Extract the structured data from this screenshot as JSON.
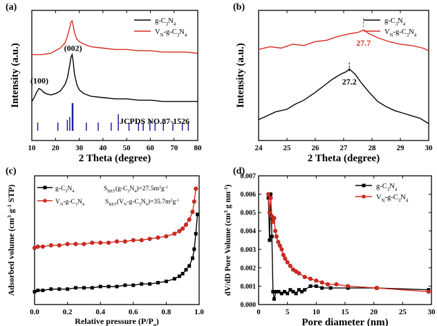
{
  "chart_data": [
    {
      "panel": "(a)",
      "type": "line",
      "xlabel": "2 Theta (degree)",
      "ylabel": "Intensity (a.u.)",
      "xlim": [
        10,
        80
      ],
      "xticks": [
        10,
        20,
        30,
        40,
        50,
        60,
        70,
        80
      ],
      "legend_loc": "top-right",
      "series": [
        {
          "name": "g-C3N4",
          "color": "#000000",
          "x": [
            10,
            11,
            12,
            13,
            14,
            15,
            16,
            18,
            20,
            22,
            24,
            25,
            26,
            26.5,
            27,
            27.5,
            28,
            29,
            30,
            32,
            35,
            40,
            45,
            50,
            55,
            60,
            65,
            70,
            75,
            80
          ],
          "y": [
            0.3,
            0.33,
            0.37,
            0.4,
            0.39,
            0.37,
            0.36,
            0.35,
            0.36,
            0.38,
            0.43,
            0.48,
            0.58,
            0.64,
            0.66,
            0.6,
            0.51,
            0.43,
            0.39,
            0.36,
            0.34,
            0.33,
            0.32,
            0.32,
            0.31,
            0.31,
            0.3,
            0.3,
            0.3,
            0.3
          ]
        },
        {
          "name": "VN-g-C3N4",
          "color": "#d62a1f",
          "x": [
            10,
            14,
            18,
            20,
            22,
            24,
            25,
            26,
            26.5,
            27,
            27.5,
            28,
            29,
            30,
            32,
            35,
            40,
            45,
            50,
            55,
            60,
            65,
            70,
            75,
            80
          ],
          "y": [
            0.66,
            0.66,
            0.67,
            0.69,
            0.71,
            0.75,
            0.8,
            0.87,
            0.91,
            0.92,
            0.88,
            0.83,
            0.78,
            0.76,
            0.74,
            0.72,
            0.71,
            0.7,
            0.7,
            0.69,
            0.69,
            0.68,
            0.68,
            0.68,
            0.67
          ]
        }
      ],
      "reference": {
        "label": "JCPDS NO.87-1526",
        "color": "#1f1f9e",
        "x": [
          12.5,
          21,
          25,
          26,
          27.2,
          33,
          38,
          43.5,
          46.5,
          51,
          55,
          57,
          59.8,
          62,
          65.5,
          69.5,
          73.5,
          76
        ],
        "h": [
          0.3,
          0.3,
          0.4,
          0.5,
          1.0,
          0.3,
          0.3,
          0.3,
          0.6,
          0.3,
          0.3,
          0.3,
          0.4,
          0.3,
          0.3,
          0.3,
          0.3,
          0.3
        ]
      },
      "annotations": [
        {
          "text": "(100)",
          "x": 13.2
        },
        {
          "text": "(002)",
          "x": 27.4
        }
      ]
    },
    {
      "panel": "(b)",
      "type": "line",
      "xlabel": "2 Theta (degree)",
      "ylabel": "Intensity (a.u.)",
      "xlim": [
        24,
        30
      ],
      "xticks": [
        24,
        25,
        26,
        27,
        28,
        29,
        30
      ],
      "legend_loc": "top-right",
      "series": [
        {
          "name": "g-C3N4",
          "color": "#000000",
          "x": [
            24,
            24.3,
            24.6,
            25,
            25.3,
            25.6,
            26,
            26.3,
            26.6,
            26.9,
            27.1,
            27.2,
            27.4,
            27.6,
            27.9,
            28.2,
            28.5,
            28.8,
            29.1,
            29.4,
            29.7,
            30
          ],
          "y": [
            0.16,
            0.19,
            0.22,
            0.24,
            0.28,
            0.31,
            0.37,
            0.42,
            0.47,
            0.51,
            0.53,
            0.55,
            0.51,
            0.45,
            0.37,
            0.3,
            0.26,
            0.23,
            0.21,
            0.19,
            0.17,
            0.13
          ]
        },
        {
          "name": "VN-g-C3N4",
          "color": "#d62a1f",
          "x": [
            24,
            24.4,
            24.8,
            25.2,
            25.6,
            26,
            26.4,
            26.8,
            27.2,
            27.5,
            27.7,
            27.9,
            28.2,
            28.6,
            29,
            29.4,
            29.8,
            30
          ],
          "y": [
            0.7,
            0.72,
            0.71,
            0.74,
            0.73,
            0.76,
            0.77,
            0.8,
            0.82,
            0.83,
            0.85,
            0.82,
            0.79,
            0.76,
            0.74,
            0.73,
            0.71,
            0.69
          ]
        }
      ],
      "peak_markers": [
        {
          "label": "27.7",
          "x": 27.7,
          "color": "#d62a1f"
        },
        {
          "label": "27.2",
          "x": 27.2,
          "color": "#000000"
        }
      ]
    },
    {
      "panel": "(c)",
      "type": "line",
      "xlabel": "Relative pressure (P/P0)",
      "ylabel": "Adsorbed volume (cm3 g-1 STP)",
      "xlim": [
        0.0,
        1.0
      ],
      "xticks": [
        0.0,
        0.2,
        0.4,
        0.6,
        0.8,
        1.0
      ],
      "legend_loc": "top-left",
      "series": [
        {
          "name": "g-C3N4",
          "color": "#000000",
          "marker": "square",
          "x": [
            0.0,
            0.02,
            0.05,
            0.1,
            0.15,
            0.2,
            0.25,
            0.3,
            0.35,
            0.4,
            0.45,
            0.5,
            0.55,
            0.6,
            0.65,
            0.7,
            0.75,
            0.8,
            0.85,
            0.88,
            0.9,
            0.92,
            0.94,
            0.96,
            0.97,
            0.98,
            0.99
          ],
          "y": [
            0.1,
            0.11,
            0.11,
            0.12,
            0.12,
            0.12,
            0.13,
            0.13,
            0.13,
            0.14,
            0.14,
            0.14,
            0.15,
            0.15,
            0.16,
            0.16,
            0.17,
            0.18,
            0.2,
            0.22,
            0.24,
            0.27,
            0.3,
            0.36,
            0.43,
            0.55,
            0.7
          ]
        },
        {
          "name": "VN-g-C3N4",
          "color": "#d62a1f",
          "marker": "circle",
          "x": [
            0.0,
            0.02,
            0.05,
            0.1,
            0.15,
            0.2,
            0.25,
            0.3,
            0.35,
            0.4,
            0.45,
            0.5,
            0.55,
            0.6,
            0.65,
            0.7,
            0.75,
            0.8,
            0.85,
            0.88,
            0.9,
            0.92,
            0.94,
            0.96,
            0.97,
            0.98
          ],
          "y": [
            0.44,
            0.45,
            0.45,
            0.46,
            0.46,
            0.47,
            0.47,
            0.47,
            0.48,
            0.48,
            0.48,
            0.49,
            0.49,
            0.5,
            0.5,
            0.51,
            0.52,
            0.53,
            0.55,
            0.57,
            0.59,
            0.62,
            0.66,
            0.72,
            0.8,
            0.9
          ]
        }
      ],
      "legend_text": [
        {
          "name": "g-C3N4",
          "sbet": "SBET(g-C3N4)=27.5m2g-1"
        },
        {
          "name": "VN-g-C3N4",
          "sbet": "SBET(VN-g-C3N4)=35.7m2g-1"
        }
      ]
    },
    {
      "panel": "(d)",
      "type": "line",
      "xlabel": "Pore diameter (nm)",
      "ylabel": "dV/dD Pore Volume (cm3 g nm-1)",
      "xlim": [
        0,
        30
      ],
      "xticks": [
        0,
        5,
        10,
        15,
        20,
        25,
        30
      ],
      "ylim": [
        0,
        0.007
      ],
      "yticks": [
        0.0,
        0.001,
        0.002,
        0.003,
        0.004,
        0.005,
        0.006,
        0.007
      ],
      "legend_loc": "top-right",
      "series": [
        {
          "name": "g-C3N4",
          "color": "#000000",
          "marker": "square",
          "x": [
            1.7,
            1.9,
            2.1,
            2.3,
            2.5,
            2.7,
            3.0,
            3.5,
            4.0,
            4.5,
            5.0,
            5.5,
            6.0,
            6.5,
            7.0,
            7.5,
            8.0,
            9.0,
            10.0,
            11.0,
            12.5,
            15.5,
            20.5,
            29.5
          ],
          "y": [
            0.0058,
            0.0035,
            0.006,
            0.0037,
            0.0007,
            0.0003,
            0.0007,
            0.0007,
            0.0006,
            0.0007,
            0.0006,
            0.0008,
            0.0007,
            0.0006,
            0.0008,
            0.0007,
            0.0008,
            0.001,
            0.001,
            0.0009,
            0.0009,
            0.0009,
            0.0009,
            0.0008
          ]
        },
        {
          "name": "VN-g-C3N4",
          "color": "#d62a1f",
          "marker": "circle",
          "x": [
            1.7,
            1.9,
            2.1,
            2.3,
            2.5,
            2.7,
            2.9,
            3.1,
            3.4,
            3.7,
            4.0,
            4.3,
            4.6,
            5.0,
            5.5,
            6.0,
            6.5,
            7.0,
            8.0,
            9.0,
            10.0,
            11.0,
            12.0,
            13.5,
            15.5,
            20.5,
            29.5
          ],
          "y": [
            0.006,
            0.005,
            0.0058,
            0.0048,
            0.0045,
            0.0047,
            0.004,
            0.0037,
            0.0034,
            0.0032,
            0.003,
            0.0027,
            0.0025,
            0.0023,
            0.0021,
            0.0019,
            0.0018,
            0.0017,
            0.0015,
            0.0014,
            0.0013,
            0.0012,
            0.0011,
            0.0011,
            0.001,
            0.0009,
            0.0007
          ]
        }
      ]
    }
  ],
  "colors": {
    "black": "#000000",
    "red": "#d62a1f",
    "blue": "#1f1f9e"
  }
}
